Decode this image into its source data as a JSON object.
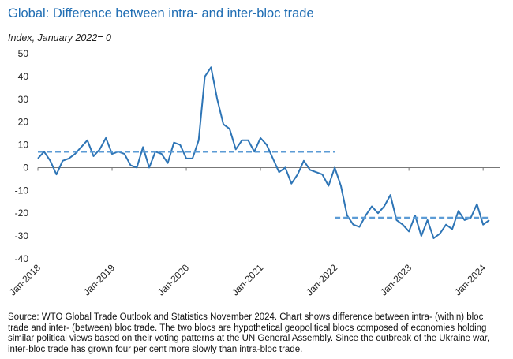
{
  "chart_data": {
    "type": "line",
    "title": "Global: Difference between intra- and inter-bloc trade",
    "subtitle": "Index, January 2022= 0",
    "source": "Source: WTO Global Trade Outlook and Statistics November 2024. Chart shows difference between intra- (within) bloc trade and inter- (between) bloc trade. The two blocs are hypothetical geopolitical blocs composed of economies holding similar political views based on their voting patterns at the UN General Assembly. Since the outbreak of the Ukraine war, inter-bloc trade has grown four per cent more slowly than intra-bloc trade.",
    "categories": [
      "Jan-2018",
      null,
      null,
      null,
      null,
      null,
      null,
      null,
      null,
      null,
      null,
      null,
      "Jan-2019",
      null,
      null,
      null,
      null,
      null,
      null,
      null,
      null,
      null,
      null,
      null,
      "Jan-2020",
      null,
      null,
      null,
      null,
      null,
      null,
      null,
      null,
      null,
      null,
      null,
      "Jan-2021",
      null,
      null,
      null,
      null,
      null,
      null,
      null,
      null,
      null,
      null,
      null,
      "Jan-2022",
      null,
      null,
      null,
      null,
      null,
      null,
      null,
      null,
      null,
      null,
      null,
      "Jan-2023",
      null,
      null,
      null,
      null,
      null,
      null,
      null,
      null,
      null,
      null,
      null,
      "Jan-2024",
      null
    ],
    "series": [
      {
        "color": "#2e75b6",
        "style": "solid",
        "values": [
          4,
          7,
          3,
          -3,
          3,
          4,
          6,
          9,
          12,
          5,
          8,
          13,
          6,
          7,
          6,
          1,
          0,
          9,
          0,
          7,
          6,
          2,
          11,
          10,
          4,
          4,
          12,
          40,
          44,
          30,
          19,
          17,
          8,
          12,
          12,
          7,
          13,
          10,
          4,
          -2,
          0,
          -7,
          -3,
          3,
          -1,
          -2,
          -3,
          -8,
          0,
          -8,
          -21,
          -25,
          -26,
          -21,
          -17,
          -20,
          -17,
          -12,
          -23,
          -25,
          -28,
          -21,
          -30,
          -23,
          -31,
          -29,
          -25,
          -27,
          -19,
          -23,
          -22,
          -16,
          -25,
          -23
        ]
      },
      {
        "color": "#5b9bd5",
        "style": "dashed",
        "values": [
          7,
          7,
          7,
          7,
          7,
          7,
          7,
          7,
          7,
          7,
          7,
          7,
          7,
          7,
          7,
          7,
          7,
          7,
          7,
          7,
          7,
          7,
          7,
          7,
          7,
          7,
          7,
          7,
          7,
          7,
          7,
          7,
          7,
          7,
          7,
          7,
          7,
          7,
          7,
          7,
          7,
          7,
          7,
          7,
          7,
          7,
          7,
          7,
          7,
          null,
          null,
          null,
          null,
          null,
          null,
          null,
          null,
          null,
          null,
          null,
          null,
          null,
          null,
          null,
          null,
          null,
          null,
          null,
          null,
          null,
          null,
          null,
          null,
          null
        ]
      },
      {
        "color": "#5b9bd5",
        "style": "dashed",
        "values": [
          null,
          null,
          null,
          null,
          null,
          null,
          null,
          null,
          null,
          null,
          null,
          null,
          null,
          null,
          null,
          null,
          null,
          null,
          null,
          null,
          null,
          null,
          null,
          null,
          null,
          null,
          null,
          null,
          null,
          null,
          null,
          null,
          null,
          null,
          null,
          null,
          null,
          null,
          null,
          null,
          null,
          null,
          null,
          null,
          null,
          null,
          null,
          null,
          -22,
          -22,
          -22,
          -22,
          -22,
          -22,
          -22,
          -22,
          -22,
          -22,
          -22,
          -22,
          -22,
          -22,
          -22,
          -22,
          -22,
          -22,
          -22,
          -22,
          -22,
          -22,
          -22,
          -22,
          -22,
          -22
        ]
      }
    ],
    "ylim": [
      -40,
      50
    ],
    "yticks": [
      -40,
      -30,
      -20,
      -10,
      0,
      10,
      20,
      30,
      40,
      50
    ]
  }
}
